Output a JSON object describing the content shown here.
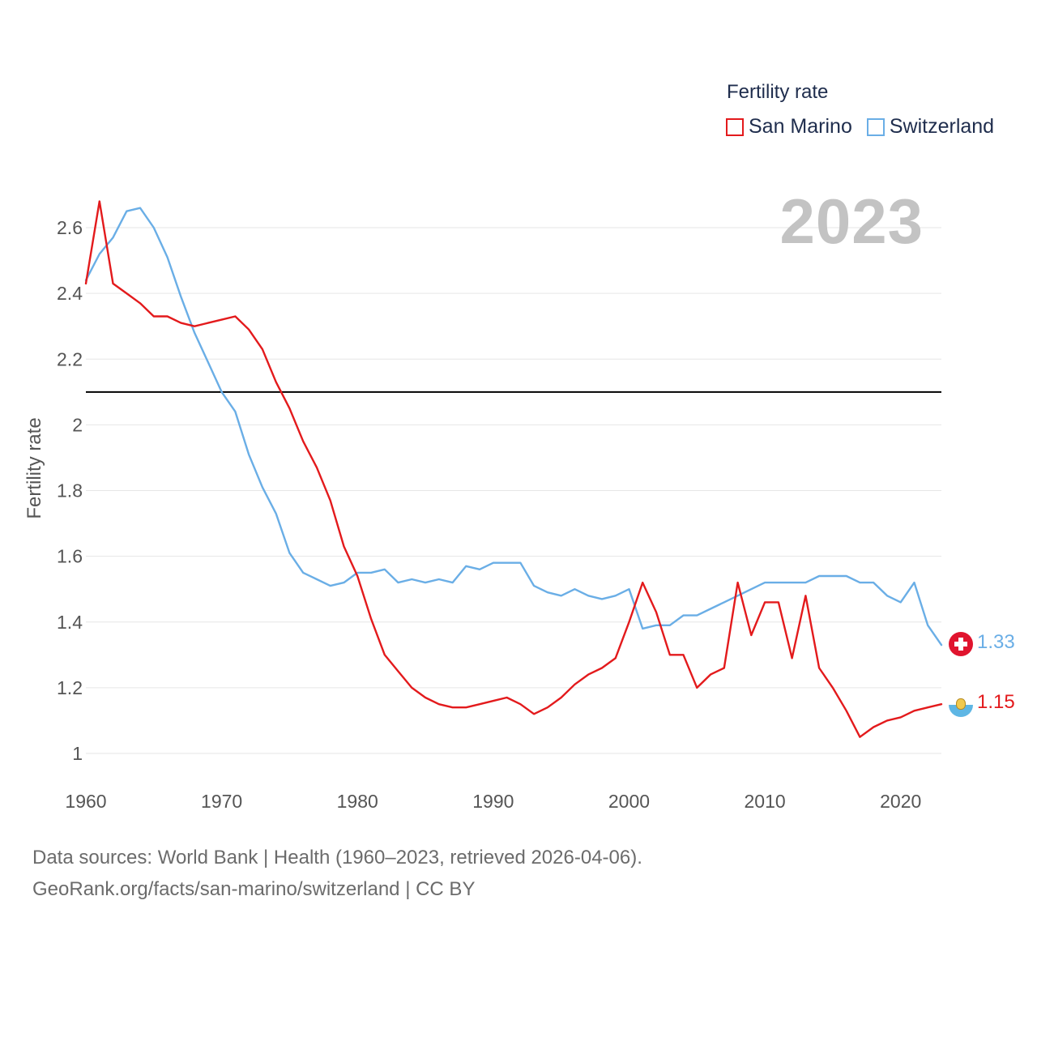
{
  "legend": {
    "title": "Fertility rate",
    "items": [
      {
        "label": "San Marino",
        "color": "#e31a1c"
      },
      {
        "label": "Switzerland",
        "color": "#6aaee6"
      }
    ]
  },
  "year_display": "2023",
  "end_labels": {
    "switzerland": "1.33",
    "san_marino": "1.15"
  },
  "flags": {
    "switzerland": "swiss-flag-icon",
    "san_marino": "san-marino-flag-icon"
  },
  "source": {
    "line1": "Data sources: World Bank | Health (1960–2023, retrieved 2026-04-06).",
    "line2": "GeoRank.org/facts/san-marino/switzerland | CC BY"
  },
  "chart_data": {
    "type": "line",
    "title": "",
    "xlabel": "",
    "ylabel": "Fertility rate",
    "xlim": [
      1960,
      2023
    ],
    "ylim": [
      0.92,
      2.72
    ],
    "x_ticks": [
      1960,
      1970,
      1980,
      1990,
      2000,
      2010,
      2020
    ],
    "y_ticks": [
      1,
      1.2,
      1.4,
      1.6,
      1.8,
      2,
      2.2,
      2.4,
      2.6
    ],
    "y_tick_labels": [
      "1",
      "1.2",
      "1.4",
      "1.6",
      "1.8",
      "2",
      "2.2",
      "2.4",
      "2.6"
    ],
    "grid": true,
    "legend_position": "top-right",
    "reference_line": {
      "y": 2.1,
      "color": "#000000"
    },
    "x": [
      1960,
      1961,
      1962,
      1963,
      1964,
      1965,
      1966,
      1967,
      1968,
      1969,
      1970,
      1971,
      1972,
      1973,
      1974,
      1975,
      1976,
      1977,
      1978,
      1979,
      1980,
      1981,
      1982,
      1983,
      1984,
      1985,
      1986,
      1987,
      1988,
      1989,
      1990,
      1991,
      1992,
      1993,
      1994,
      1995,
      1996,
      1997,
      1998,
      1999,
      2000,
      2001,
      2002,
      2003,
      2004,
      2005,
      2006,
      2007,
      2008,
      2009,
      2010,
      2011,
      2012,
      2013,
      2014,
      2015,
      2016,
      2017,
      2018,
      2019,
      2020,
      2021,
      2022,
      2023
    ],
    "series": [
      {
        "name": "San Marino",
        "color": "#e31a1c",
        "values": [
          2.43,
          2.68,
          2.43,
          2.4,
          2.37,
          2.33,
          2.33,
          2.31,
          2.3,
          2.31,
          2.32,
          2.33,
          2.29,
          2.23,
          2.13,
          2.05,
          1.95,
          1.87,
          1.77,
          1.63,
          1.54,
          1.41,
          1.3,
          1.25,
          1.2,
          1.17,
          1.15,
          1.14,
          1.14,
          1.15,
          1.16,
          1.17,
          1.15,
          1.12,
          1.14,
          1.17,
          1.21,
          1.24,
          1.26,
          1.29,
          1.4,
          1.52,
          1.43,
          1.3,
          1.3,
          1.2,
          1.24,
          1.26,
          1.52,
          1.36,
          1.46,
          1.46,
          1.29,
          1.48,
          1.26,
          1.2,
          1.13,
          1.05,
          1.08,
          1.1,
          1.11,
          1.13,
          1.14,
          1.15
        ]
      },
      {
        "name": "Switzerland",
        "color": "#6aaee6",
        "values": [
          2.44,
          2.52,
          2.57,
          2.65,
          2.66,
          2.6,
          2.51,
          2.39,
          2.28,
          2.19,
          2.1,
          2.04,
          1.91,
          1.81,
          1.73,
          1.61,
          1.55,
          1.53,
          1.51,
          1.52,
          1.55,
          1.55,
          1.56,
          1.52,
          1.53,
          1.52,
          1.53,
          1.52,
          1.57,
          1.56,
          1.58,
          1.58,
          1.58,
          1.51,
          1.49,
          1.48,
          1.5,
          1.48,
          1.47,
          1.48,
          1.5,
          1.38,
          1.39,
          1.39,
          1.42,
          1.42,
          1.44,
          1.46,
          1.48,
          1.5,
          1.52,
          1.52,
          1.52,
          1.52,
          1.54,
          1.54,
          1.54,
          1.52,
          1.52,
          1.48,
          1.46,
          1.52,
          1.39,
          1.33
        ]
      }
    ]
  }
}
